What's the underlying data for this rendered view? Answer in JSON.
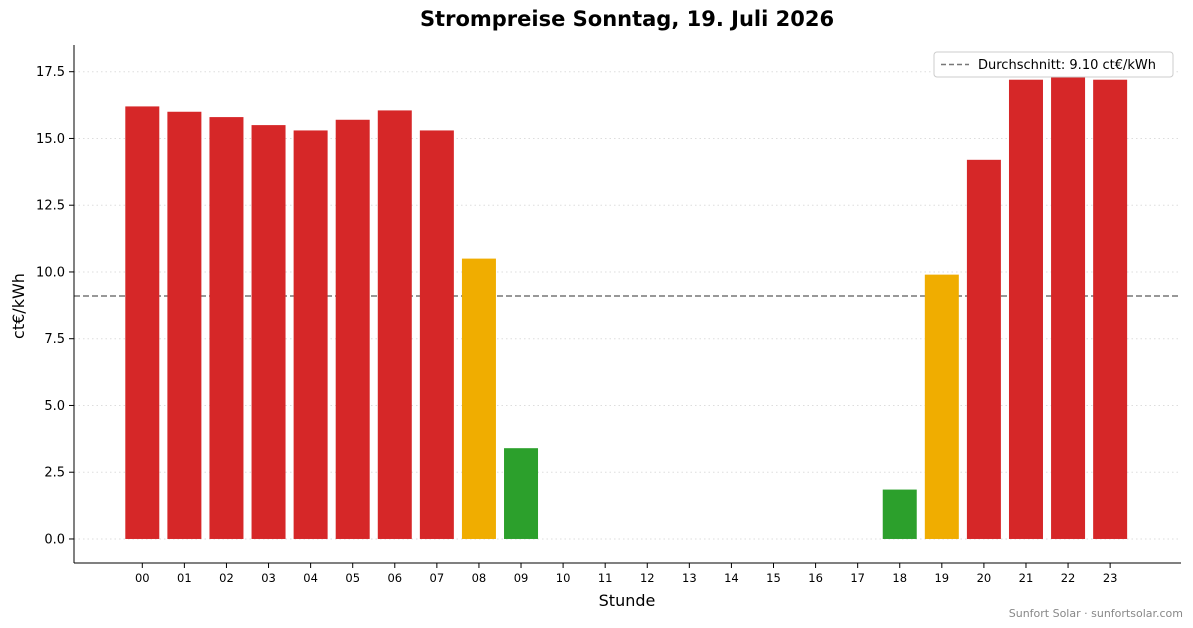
{
  "chart_data": {
    "type": "bar",
    "title": "Strompreise Sonntag, 19. Juli 2026",
    "xlabel": "Stunde",
    "ylabel": "ct€/kWh",
    "ylim": [
      -0.9,
      18.5
    ],
    "yticks": [
      0.0,
      2.5,
      5.0,
      7.5,
      10.0,
      12.5,
      15.0,
      17.5
    ],
    "ytick_labels": [
      "0.0",
      "2.5",
      "5.0",
      "7.5",
      "10.0",
      "12.5",
      "15.0",
      "17.5"
    ],
    "categories": [
      "00",
      "01",
      "02",
      "03",
      "04",
      "05",
      "06",
      "07",
      "08",
      "09",
      "10",
      "11",
      "12",
      "13",
      "14",
      "15",
      "16",
      "17",
      "18",
      "19",
      "20",
      "21",
      "22",
      "23"
    ],
    "values": [
      16.2,
      16.0,
      15.8,
      15.5,
      15.3,
      15.7,
      16.05,
      15.3,
      10.5,
      3.4,
      null,
      null,
      null,
      null,
      null,
      null,
      null,
      null,
      1.85,
      9.9,
      14.2,
      17.2,
      17.3,
      17.2
    ],
    "bar_colors": [
      "#d62728",
      "#d62728",
      "#d62728",
      "#d62728",
      "#d62728",
      "#d62728",
      "#d62728",
      "#d62728",
      "#f0ad00",
      "#2ca02c",
      null,
      null,
      null,
      null,
      null,
      null,
      null,
      null,
      "#2ca02c",
      "#f0ad00",
      "#d62728",
      "#d62728",
      "#d62728",
      "#d62728"
    ],
    "average": {
      "value": 9.1,
      "label": "Durchschnitt: 9.10 ct€/kWh",
      "color": "#777777",
      "style": "dashed"
    },
    "grid": "horizontal-dotted",
    "legend_position": "top-right",
    "colors": {
      "high": "#d62728",
      "mid": "#f0ad00",
      "low": "#2ca02c"
    }
  },
  "footer": "Sunfort Solar · sunfortsolar.com"
}
